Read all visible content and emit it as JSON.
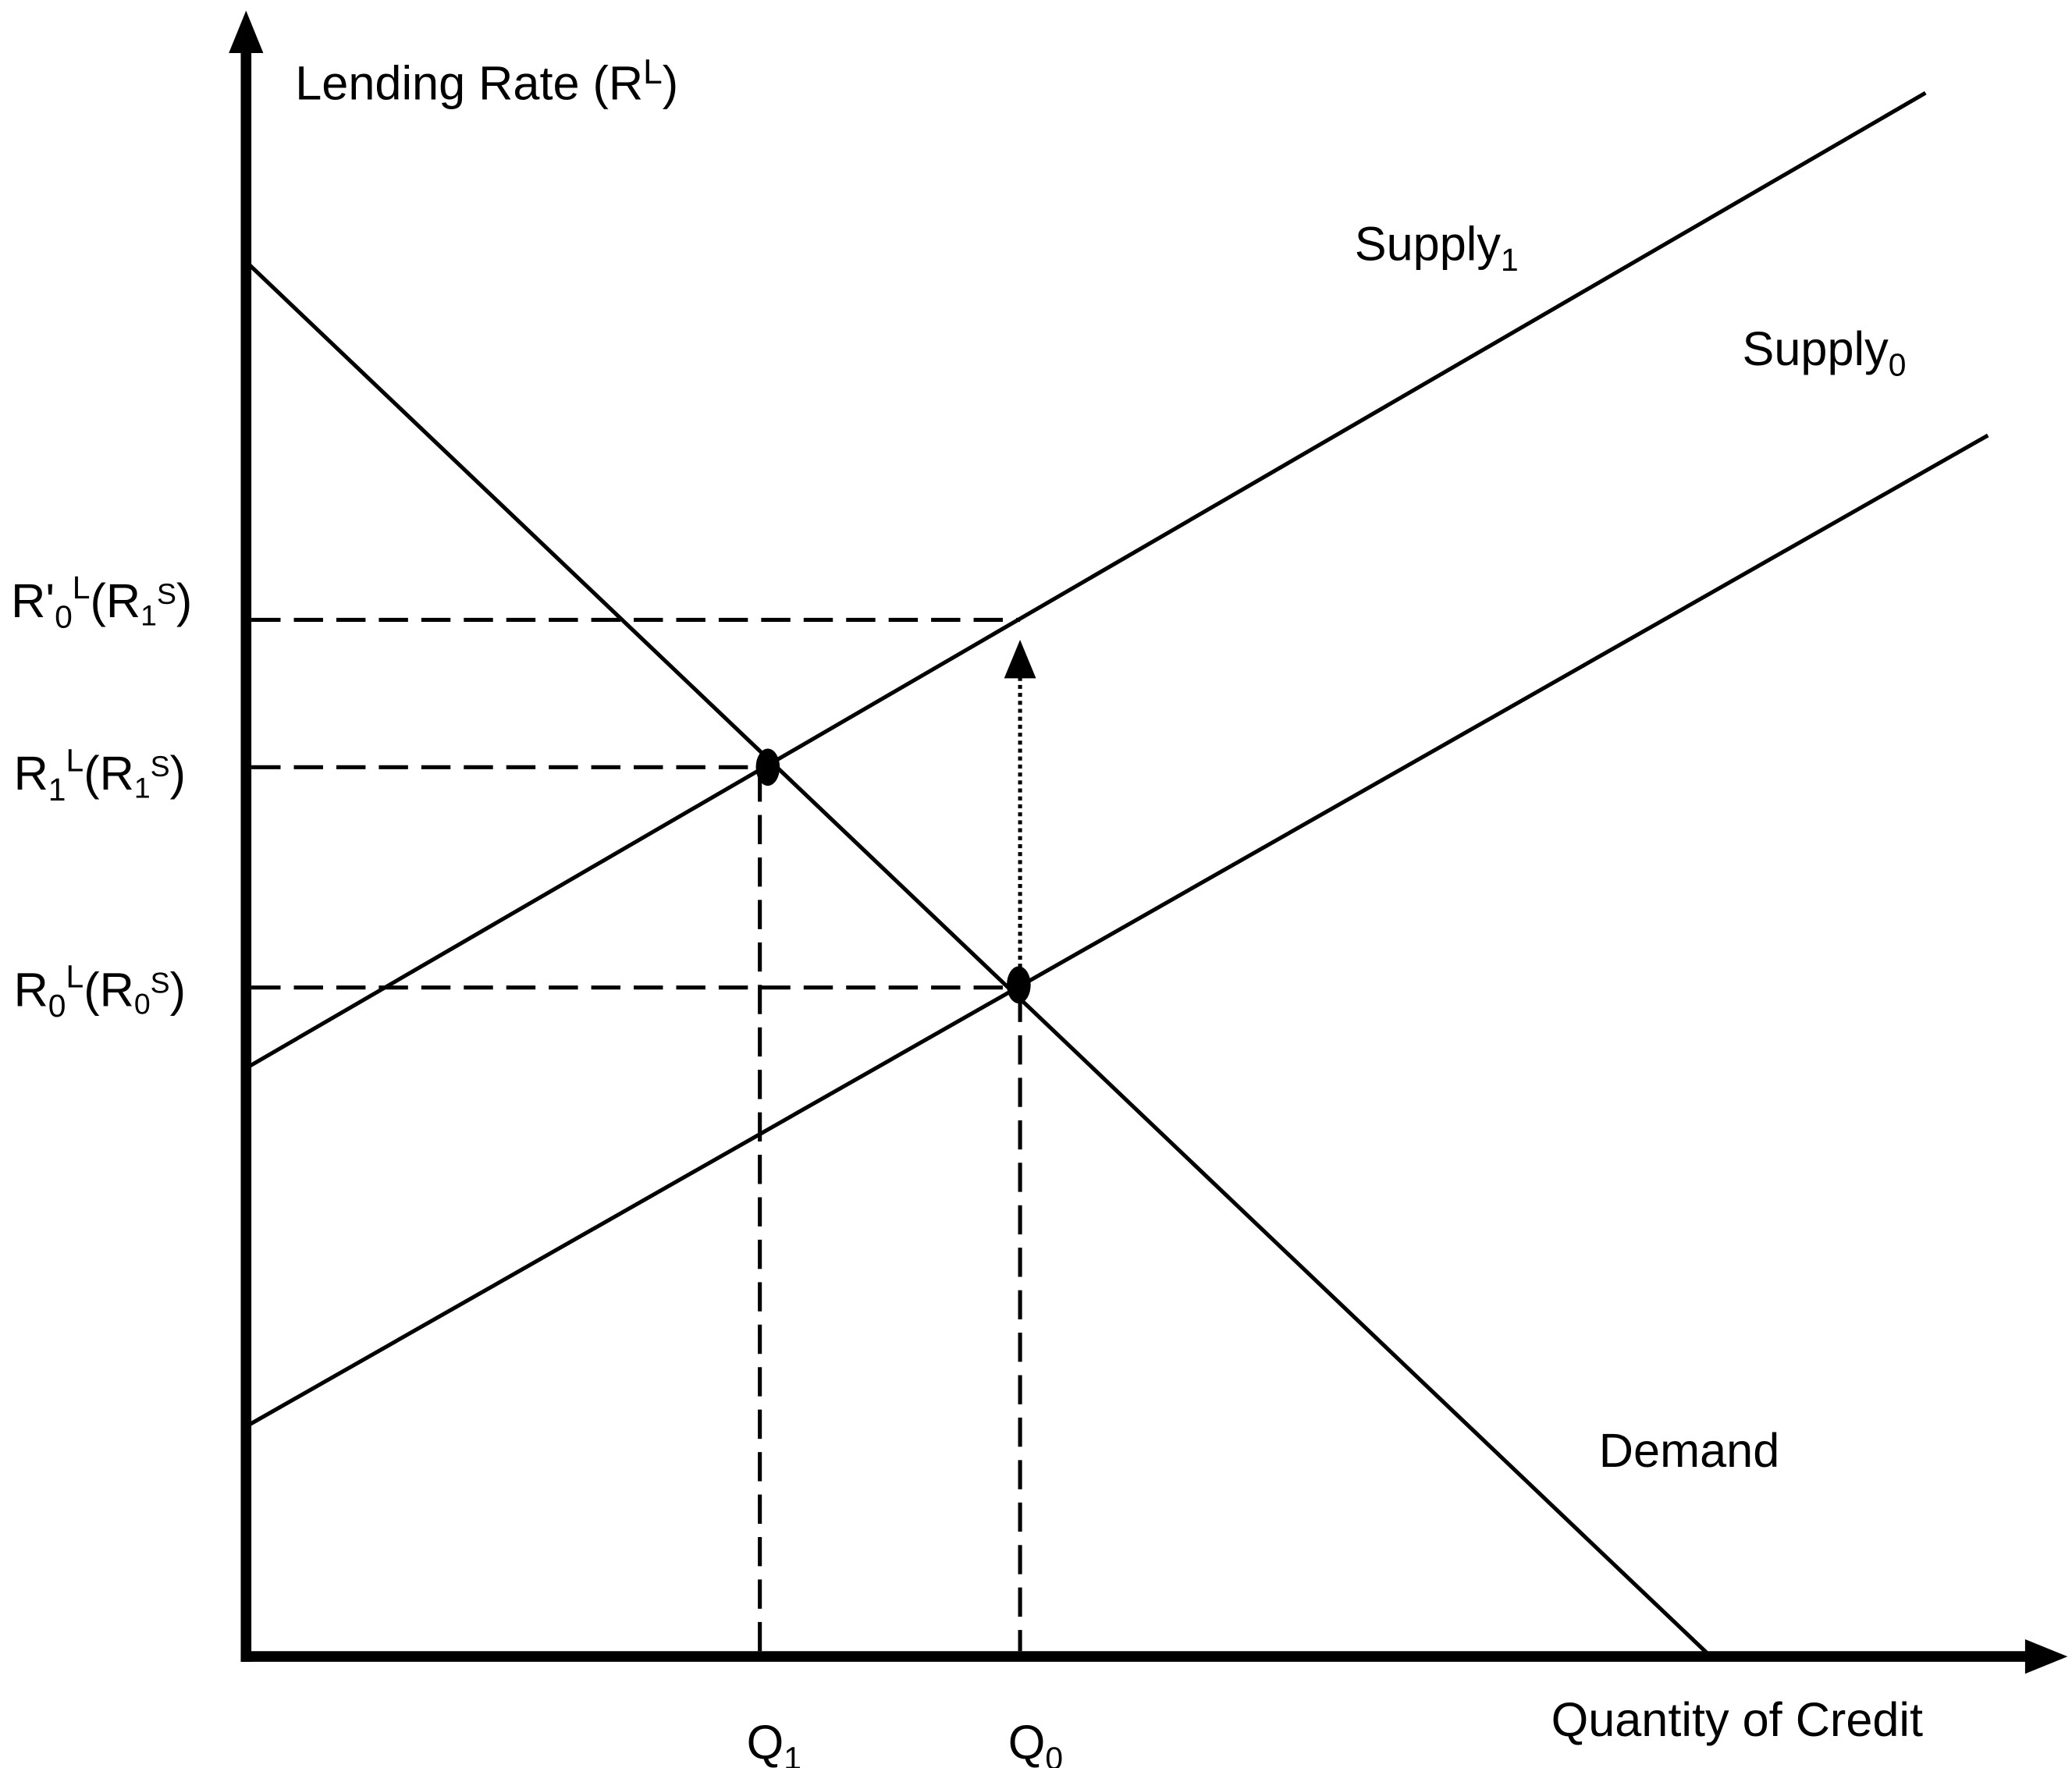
{
  "axes": {
    "y_label": [
      "Lending Rate (R",
      "L",
      ")"
    ],
    "x_label": "Quantity of Credit"
  },
  "curves": {
    "supply1": [
      "Supply",
      "1"
    ],
    "supply0": [
      "Supply",
      "0"
    ],
    "demand": "Demand"
  },
  "y_levels": [
    [
      "R'",
      "0",
      "L",
      "(R",
      "1",
      "S",
      ")"
    ],
    [
      "R",
      "1",
      "L",
      "(R",
      "1",
      "S",
      ")"
    ],
    [
      "R",
      "0",
      "L",
      "(R",
      "0",
      "S",
      ")"
    ]
  ],
  "x_levels": [
    [
      "Q",
      "1"
    ],
    [
      "Q",
      "0"
    ]
  ]
}
